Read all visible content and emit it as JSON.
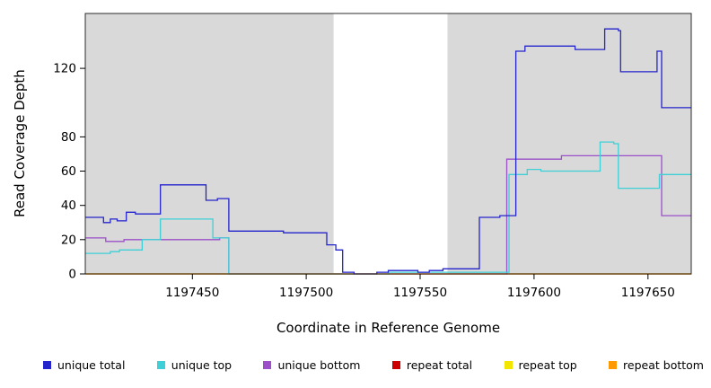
{
  "chart_data": {
    "type": "line",
    "step": true,
    "title": "",
    "xlabel": "Coordinate in Reference Genome",
    "ylabel": "Read Coverage Depth",
    "xlim": [
      1197403,
      1197669
    ],
    "ylim": [
      0,
      152
    ],
    "x_ticks": [
      1197450,
      1197500,
      1197550,
      1197600,
      1197650
    ],
    "y_ticks": [
      0,
      20,
      40,
      60,
      80,
      120
    ],
    "grid": false,
    "legend_position": "bottom",
    "plot_background": "#d9d9d9",
    "masked_region": {
      "x0": 1197512,
      "x1": 1197562,
      "color": "#ffffff"
    },
    "series": [
      {
        "name": "unique total",
        "color": "#2424cc",
        "z": 6,
        "points": [
          [
            1197403,
            33
          ],
          [
            1197411,
            30
          ],
          [
            1197414,
            32
          ],
          [
            1197417,
            31
          ],
          [
            1197421,
            36
          ],
          [
            1197425,
            35
          ],
          [
            1197436,
            52
          ],
          [
            1197456,
            43
          ],
          [
            1197461,
            44
          ],
          [
            1197466,
            25
          ],
          [
            1197490,
            24
          ],
          [
            1197509,
            17
          ],
          [
            1197513,
            14
          ],
          [
            1197516,
            1
          ],
          [
            1197521,
            0
          ],
          [
            1197531,
            1
          ],
          [
            1197536,
            2
          ],
          [
            1197549,
            1
          ],
          [
            1197554,
            2
          ],
          [
            1197560,
            3
          ],
          [
            1197576,
            33
          ],
          [
            1197585,
            34
          ],
          [
            1197592,
            130
          ],
          [
            1197596,
            133
          ],
          [
            1197618,
            131
          ],
          [
            1197631,
            143
          ],
          [
            1197637,
            142
          ],
          [
            1197638,
            118
          ],
          [
            1197654,
            130
          ],
          [
            1197656,
            97
          ]
        ]
      },
      {
        "name": "unique top",
        "color": "#3ed0d6",
        "z": 4,
        "points": [
          [
            1197403,
            12
          ],
          [
            1197414,
            13
          ],
          [
            1197418,
            14
          ],
          [
            1197428,
            20
          ],
          [
            1197436,
            32
          ],
          [
            1197459,
            21
          ],
          [
            1197466,
            0
          ],
          [
            1197536,
            1
          ],
          [
            1197589,
            58
          ],
          [
            1197597,
            61
          ],
          [
            1197603,
            60
          ],
          [
            1197629,
            77
          ],
          [
            1197635,
            76
          ],
          [
            1197637,
            50
          ],
          [
            1197655,
            58
          ]
        ]
      },
      {
        "name": "unique bottom",
        "color": "#9b4fc9",
        "z": 3,
        "points": [
          [
            1197403,
            21
          ],
          [
            1197412,
            19
          ],
          [
            1197420,
            20
          ],
          [
            1197459,
            20
          ],
          [
            1197462,
            21
          ],
          [
            1197466,
            0
          ],
          [
            1197588,
            67
          ],
          [
            1197612,
            69
          ],
          [
            1197656,
            34
          ]
        ]
      },
      {
        "name": "repeat total",
        "color": "#cc0000",
        "z": 1,
        "points": [
          [
            1197403,
            0
          ]
        ]
      },
      {
        "name": "repeat top",
        "color": "#f2e500",
        "z": 2,
        "points": [
          [
            1197403,
            0
          ]
        ]
      },
      {
        "name": "repeat bottom",
        "color": "#ff9900",
        "z": 5,
        "points": [
          [
            1197403,
            0
          ]
        ]
      }
    ]
  }
}
